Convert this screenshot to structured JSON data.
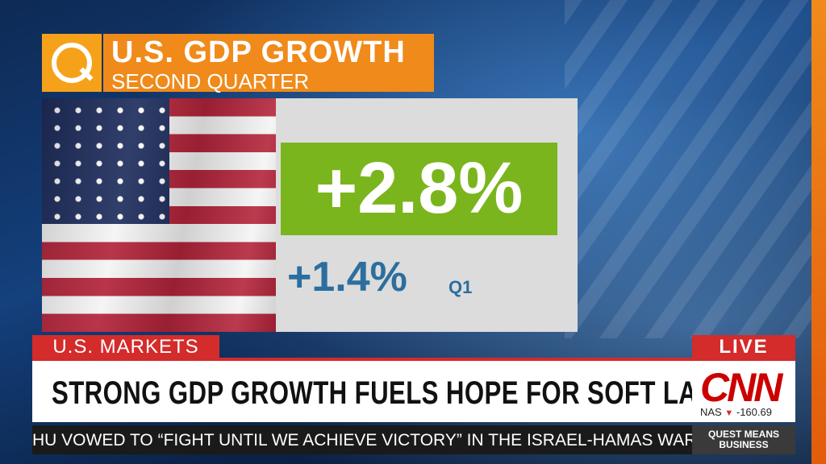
{
  "graphic": {
    "title": "U.S. GDP GROWTH",
    "subtitle": "SECOND QUARTER",
    "logo_letter": "Q",
    "main_value": "+2.8%",
    "secondary_value": "+1.4%",
    "secondary_label": "Q1"
  },
  "lower_third": {
    "section": "U.S. MARKETS",
    "live": "LIVE",
    "headline": "STRONG GDP GROWTH FUELS HOPE FOR SOFT LANDING",
    "network": "CNN",
    "ticker_symbol": "NAS",
    "ticker_arrow": "▼",
    "ticker_change": "-160.69"
  },
  "crawl": {
    "text": "HU VOWED TO “FIGHT UNTIL WE ACHIEVE VICTORY” IN THE ISRAEL-HAMAS WAR;"
  },
  "show": {
    "line1": "QUEST MEANS",
    "line2": "BUSINESS"
  },
  "colors": {
    "accent_orange": "#f08a1a",
    "value_green": "#7ab51d",
    "q1_blue": "#2c6e9e",
    "cnn_red": "#cc0000"
  }
}
